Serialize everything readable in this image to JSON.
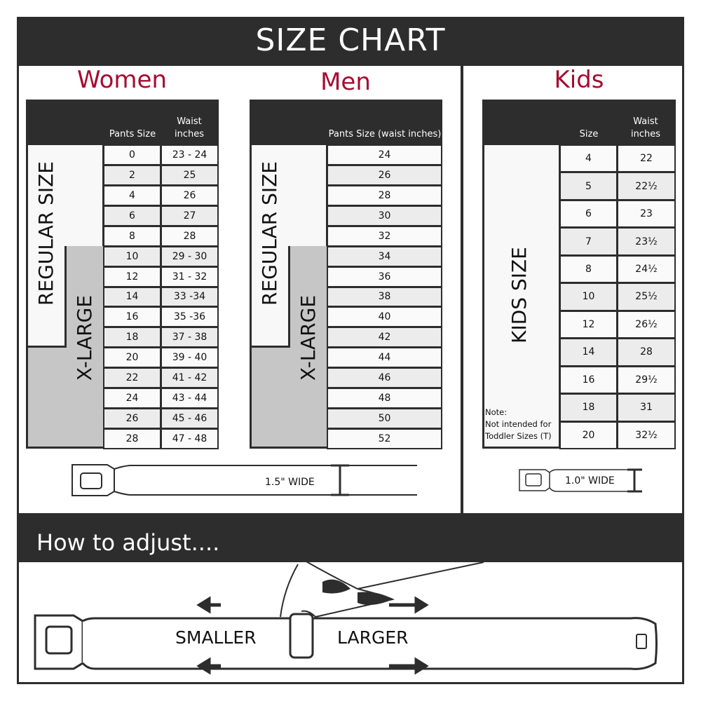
{
  "title": "SIZE CHART",
  "women": {
    "heading": "Women",
    "col1": "Pants Size",
    "col2": "Waist inches",
    "regular_label": "REGULAR SIZE",
    "xlarge_label": "X-LARGE",
    "rows": [
      [
        "0",
        "23 - 24"
      ],
      [
        "2",
        "25"
      ],
      [
        "4",
        "26"
      ],
      [
        "6",
        "27"
      ],
      [
        "8",
        "28"
      ],
      [
        "10",
        "29 - 30"
      ],
      [
        "12",
        "31 - 32"
      ],
      [
        "14",
        "33 -34"
      ],
      [
        "16",
        "35 -36"
      ],
      [
        "18",
        "37 - 38"
      ],
      [
        "20",
        "39 - 40"
      ],
      [
        "22",
        "41 - 42"
      ],
      [
        "24",
        "43 - 44"
      ],
      [
        "26",
        "45 - 46"
      ],
      [
        "28",
        "47 - 48"
      ]
    ]
  },
  "men": {
    "heading": "Men",
    "col1": "Pants Size (waist inches)",
    "regular_label": "REGULAR SIZE",
    "xlarge_label": "X-LARGE",
    "rows": [
      "24",
      "26",
      "28",
      "30",
      "32",
      "34",
      "36",
      "38",
      "40",
      "42",
      "44",
      "46",
      "48",
      "50",
      "52"
    ]
  },
  "kids": {
    "heading": "Kids",
    "col1": "Size",
    "col2": "Waist inches",
    "label": "KIDS SIZE",
    "note_title": "Note:",
    "note_line1": "Not intended for",
    "note_line2": "Toddler Sizes (T)",
    "rows": [
      [
        "4",
        "22"
      ],
      [
        "5",
        "22½"
      ],
      [
        "6",
        "23"
      ],
      [
        "7",
        "23½"
      ],
      [
        "8",
        "24½"
      ],
      [
        "10",
        "25½"
      ],
      [
        "12",
        "26½"
      ],
      [
        "14",
        "28"
      ],
      [
        "16",
        "29½"
      ],
      [
        "18",
        "31"
      ],
      [
        "20",
        "32½"
      ]
    ]
  },
  "adult_belt_width": "1.5\" WIDE",
  "kids_belt_width": "1.0\" WIDE",
  "adjust": {
    "heading": "How to adjust....",
    "smaller": "SMALLER",
    "larger": "LARGER"
  },
  "colors": {
    "dark": "#2d2d2d",
    "accent": "#a50d30",
    "xlarge_gray": "#c6c6c6"
  }
}
